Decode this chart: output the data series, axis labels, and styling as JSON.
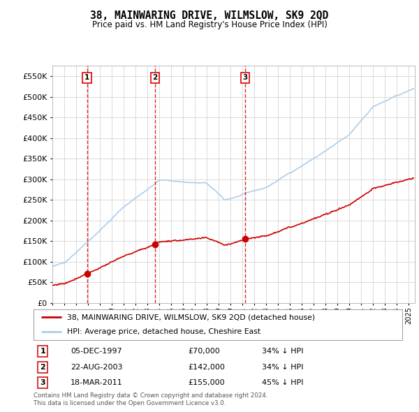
{
  "title": "38, MAINWARING DRIVE, WILMSLOW, SK9 2QD",
  "subtitle": "Price paid vs. HM Land Registry's House Price Index (HPI)",
  "ylim": [
    0,
    575000
  ],
  "yticks": [
    0,
    50000,
    100000,
    150000,
    200000,
    250000,
    300000,
    350000,
    400000,
    450000,
    500000,
    550000
  ],
  "sale_decimal": [
    1997.92,
    2003.64,
    2011.21
  ],
  "sale_prices": [
    70000,
    142000,
    155000
  ],
  "sale_labels": [
    "1",
    "2",
    "3"
  ],
  "sale_info": [
    {
      "label": "1",
      "date": "05-DEC-1997",
      "price": "£70,000",
      "hpi": "34% ↓ HPI"
    },
    {
      "label": "2",
      "date": "22-AUG-2003",
      "price": "£142,000",
      "hpi": "34% ↓ HPI"
    },
    {
      "label": "3",
      "date": "18-MAR-2011",
      "price": "£155,000",
      "hpi": "45% ↓ HPI"
    }
  ],
  "legend_entries": [
    "38, MAINWARING DRIVE, WILMSLOW, SK9 2QD (detached house)",
    "HPI: Average price, detached house, Cheshire East"
  ],
  "footer": "Contains HM Land Registry data © Crown copyright and database right 2024.\nThis data is licensed under the Open Government Licence v3.0.",
  "hpi_color": "#aecde8",
  "sale_line_color": "#cc0000",
  "vline_color": "#dd0000",
  "background_color": "#ffffff",
  "grid_color": "#cccccc",
  "xlim": [
    1995,
    2025.5
  ]
}
